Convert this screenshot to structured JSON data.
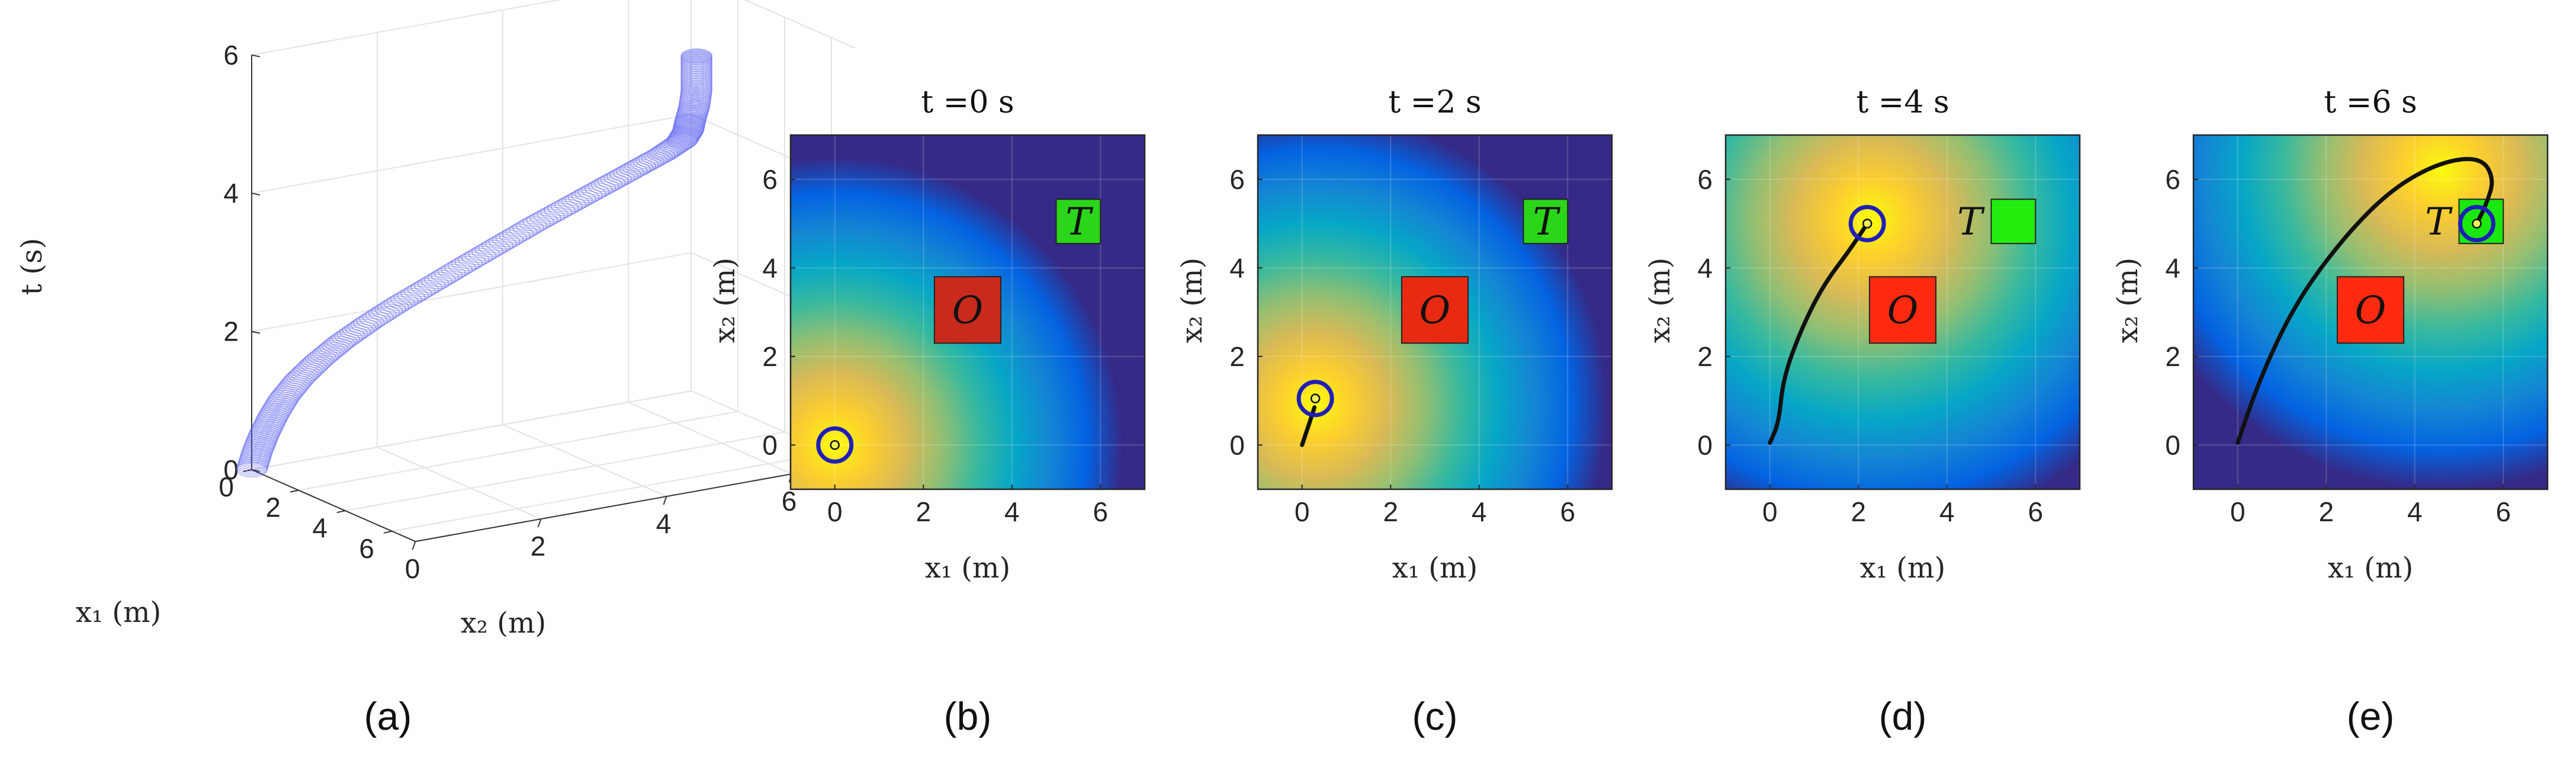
{
  "chart_data": [
    {
      "type": "scatter",
      "panel_label": "(a)",
      "title": "",
      "xlabel": "x₁ (m)",
      "ylabel": "x₂ (m)",
      "zlabel": "t (s)",
      "x_ticks": [
        "0",
        "2",
        "4",
        "6"
      ],
      "y_ticks": [
        "0",
        "2",
        "4",
        "6"
      ],
      "z_ticks": [
        "0",
        "2",
        "4",
        "6"
      ],
      "xlim": [
        0,
        7
      ],
      "ylim": [
        0,
        7
      ],
      "zlim": [
        0,
        6
      ],
      "grid": true,
      "marker_color": "#5a5cf0",
      "series": [
        {
          "points": [
            {
              "x1": 0.0,
              "x2": 0.0,
              "t": 0.0
            },
            {
              "x1": 0.02,
              "x2": 0.08,
              "t": 0.25
            },
            {
              "x1": 0.06,
              "x2": 0.18,
              "t": 0.5
            },
            {
              "x1": 0.12,
              "x2": 0.3,
              "t": 0.75
            },
            {
              "x1": 0.19,
              "x2": 0.45,
              "t": 1.0
            },
            {
              "x1": 0.3,
              "x2": 0.65,
              "t": 1.25
            },
            {
              "x1": 0.45,
              "x2": 0.9,
              "t": 1.5
            },
            {
              "x1": 0.63,
              "x2": 1.2,
              "t": 1.75
            },
            {
              "x1": 0.85,
              "x2": 1.55,
              "t": 2.0
            },
            {
              "x1": 1.08,
              "x2": 1.95,
              "t": 2.25
            },
            {
              "x1": 1.32,
              "x2": 2.4,
              "t": 2.5
            },
            {
              "x1": 1.55,
              "x2": 2.85,
              "t": 2.75
            },
            {
              "x1": 1.8,
              "x2": 3.3,
              "t": 3.0
            },
            {
              "x1": 2.05,
              "x2": 3.75,
              "t": 3.25
            },
            {
              "x1": 2.35,
              "x2": 4.2,
              "t": 3.5
            },
            {
              "x1": 2.7,
              "x2": 4.6,
              "t": 3.75
            },
            {
              "x1": 3.1,
              "x2": 4.95,
              "t": 4.0
            },
            {
              "x1": 3.6,
              "x2": 5.2,
              "t": 4.25
            },
            {
              "x1": 4.15,
              "x2": 5.3,
              "t": 4.5
            },
            {
              "x1": 4.7,
              "x2": 5.2,
              "t": 4.75
            },
            {
              "x1": 5.2,
              "x2": 5.05,
              "t": 5.0
            },
            {
              "x1": 5.5,
              "x2": 5.0,
              "t": 5.25
            },
            {
              "x1": 5.6,
              "x2": 5.0,
              "t": 5.5
            },
            {
              "x1": 5.6,
              "x2": 5.0,
              "t": 5.75
            },
            {
              "x1": 5.6,
              "x2": 5.0,
              "t": 6.0
            }
          ]
        }
      ]
    },
    {
      "type": "heatmap",
      "panel_label": "(b)",
      "title": "t =0 s",
      "xlabel": "x₁ (m)",
      "ylabel": "x₂ (m)",
      "xlim": [
        -1,
        7
      ],
      "ylim": [
        -1,
        7
      ],
      "x_ticks": [
        0,
        2,
        4,
        6
      ],
      "y_ticks": [
        0,
        2,
        4,
        6
      ],
      "field_peak": [
        0,
        0
      ],
      "field_scale": 6.5,
      "trajectory": [
        [
          0,
          0
        ]
      ],
      "robot": [
        0,
        0
      ],
      "obstacle": {
        "label": "O",
        "center": [
          3.0,
          3.05
        ],
        "size": 1.5,
        "color": "#c92a1e"
      },
      "target": {
        "label": "T",
        "center": [
          5.5,
          5.05
        ],
        "size": 1.0,
        "color": "#2bd61a",
        "label_inside": true
      }
    },
    {
      "type": "heatmap",
      "panel_label": "(c)",
      "title": "t =2 s",
      "xlabel": "x₁ (m)",
      "ylabel": "x₂ (m)",
      "xlim": [
        -1,
        7
      ],
      "ylim": [
        -1,
        7
      ],
      "x_ticks": [
        0,
        2,
        4,
        6
      ],
      "y_ticks": [
        0,
        2,
        4,
        6
      ],
      "field_peak": [
        0.3,
        0.9
      ],
      "field_scale": 6.6,
      "trajectory": [
        [
          0,
          0
        ],
        [
          0.1,
          0.3
        ],
        [
          0.2,
          0.6
        ],
        [
          0.28,
          0.85
        ]
      ],
      "robot": [
        0.3,
        1.05
      ],
      "obstacle": {
        "label": "O",
        "center": [
          3.0,
          3.05
        ],
        "size": 1.5,
        "color": "#e82a12"
      },
      "target": {
        "label": "T",
        "center": [
          5.5,
          5.05
        ],
        "size": 1.0,
        "color": "#2bd61a",
        "label_inside": true
      }
    },
    {
      "type": "heatmap",
      "panel_label": "(d)",
      "title": "t =4 s",
      "xlabel": "x₁ (m)",
      "ylabel": "x₂ (m)",
      "xlim": [
        -1,
        7
      ],
      "ylim": [
        -1,
        7
      ],
      "x_ticks": [
        0,
        2,
        4,
        6
      ],
      "y_ticks": [
        0,
        2,
        4,
        6
      ],
      "field_peak": [
        2.3,
        5.1
      ],
      "field_scale": 7.2,
      "trajectory": [
        [
          0,
          0.05
        ],
        [
          0.2,
          0.5
        ],
        [
          0.3,
          1.5
        ],
        [
          0.7,
          2.6
        ],
        [
          1.2,
          3.6
        ],
        [
          1.8,
          4.4
        ],
        [
          2.2,
          5.0
        ]
      ],
      "robot": [
        2.2,
        5.0
      ],
      "obstacle": {
        "label": "O",
        "center": [
          3.0,
          3.05
        ],
        "size": 1.5,
        "color": "#ff2a10"
      },
      "target": {
        "label": "T",
        "center": [
          5.5,
          5.05
        ],
        "size": 1.0,
        "color": "#22ee0e",
        "label_inside": false
      }
    },
    {
      "type": "heatmap",
      "panel_label": "(e)",
      "title": "t =6 s",
      "xlabel": "x₁ (m)",
      "ylabel": "x₂ (m)",
      "xlim": [
        -1,
        7
      ],
      "ylim": [
        -1,
        7
      ],
      "x_ticks": [
        0,
        2,
        4,
        6
      ],
      "y_ticks": [
        0,
        2,
        4,
        6
      ],
      "field_peak": [
        4.6,
        6.2
      ],
      "field_scale": 7.2,
      "trajectory": [
        [
          0,
          0.05
        ],
        [
          0.5,
          1.5
        ],
        [
          1.3,
          3.2
        ],
        [
          2.4,
          4.7
        ],
        [
          3.5,
          5.8
        ],
        [
          4.6,
          6.4
        ],
        [
          5.5,
          6.5
        ],
        [
          5.8,
          6.0
        ],
        [
          5.6,
          5.4
        ],
        [
          5.4,
          5.0
        ]
      ],
      "robot": [
        5.4,
        5.0
      ],
      "obstacle": {
        "label": "O",
        "center": [
          3.0,
          3.05
        ],
        "size": 1.5,
        "color": "#ff2a10"
      },
      "target": {
        "label": "T",
        "center": [
          5.5,
          5.05
        ],
        "size": 1.0,
        "color": "#1be80e",
        "label_inside": false
      }
    }
  ]
}
